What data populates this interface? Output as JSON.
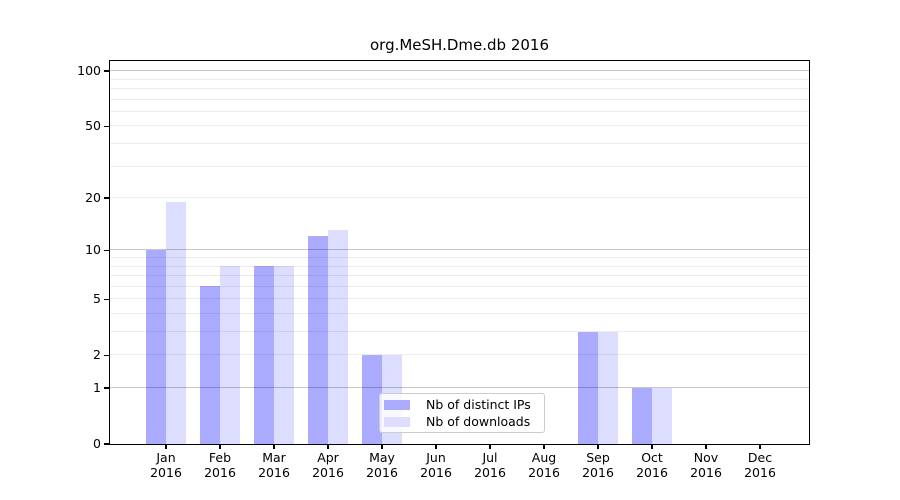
{
  "chart_data": {
    "type": "bar",
    "title": "org.MeSH.Dme.db 2016",
    "categories": [
      "Jan",
      "Feb",
      "Mar",
      "Apr",
      "May",
      "Jun",
      "Jul",
      "Aug",
      "Sep",
      "Oct",
      "Nov",
      "Dec"
    ],
    "x_tick_year": "2016",
    "series": [
      {
        "name": "Nb of distinct IPs",
        "color": "#aaaaff",
        "values": [
          10,
          6,
          8,
          12,
          2,
          0,
          0,
          0,
          3,
          1,
          0,
          0
        ]
      },
      {
        "name": "Nb of downloads",
        "color": "#ddddff",
        "values": [
          19,
          8,
          8,
          13,
          2,
          0,
          0,
          0,
          3,
          1,
          0,
          0
        ]
      }
    ],
    "y_scale": "log1p",
    "y_ticks": [
      0,
      1,
      2,
      5,
      10,
      20,
      50,
      100
    ],
    "y_minor_gridlines": [
      2,
      3,
      4,
      5,
      6,
      7,
      8,
      9,
      20,
      30,
      40,
      50,
      60,
      70,
      80,
      90
    ],
    "y_major_gridlines": [
      1,
      10,
      100
    ],
    "ylim": [
      0,
      115
    ],
    "grid": true,
    "legend_position": "lower-center",
    "colors": {
      "axis": "#000000",
      "grid_minor": "rgba(0,0,0,0.07)",
      "grid_major": "rgba(0,0,0,0.22)",
      "background": "#ffffff"
    }
  }
}
